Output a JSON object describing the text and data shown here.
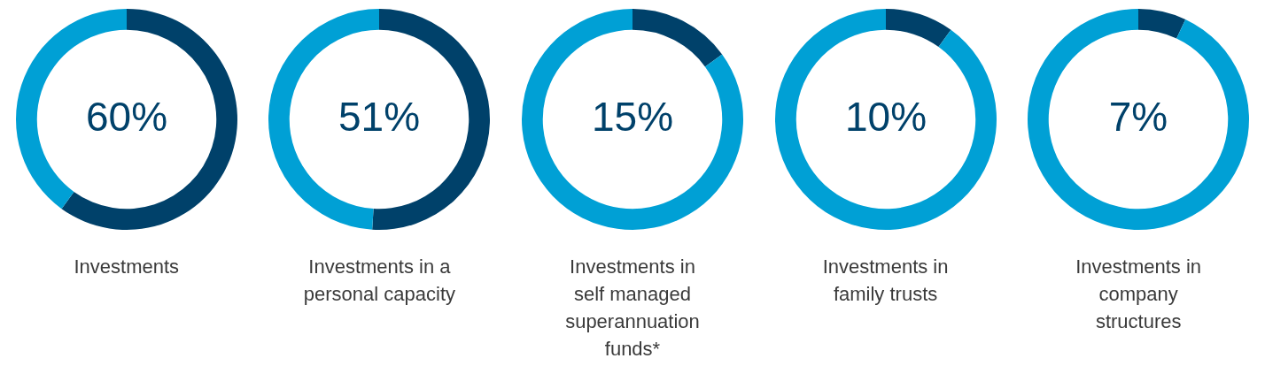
{
  "chart_data": [
    {
      "type": "donut",
      "title": "Investments",
      "categories": [
        null,
        null
      ],
      "values": [
        60,
        40
      ],
      "colors": [
        "#00416a",
        "#00a0d5"
      ],
      "value_labels": [
        "60%",
        null
      ]
    },
    {
      "type": "donut",
      "title": "Investments in a personal capacity",
      "categories": [
        null,
        null
      ],
      "values": [
        51,
        49
      ],
      "colors": [
        "#00416a",
        "#00a0d5"
      ],
      "value_labels": [
        "51%",
        null
      ]
    },
    {
      "type": "donut",
      "title": "Investments in self managed superannuation funds*",
      "categories": [
        null,
        null
      ],
      "values": [
        15,
        85
      ],
      "colors": [
        "#00416a",
        "#00a0d5"
      ],
      "value_labels": [
        "15%",
        null
      ]
    },
    {
      "type": "donut",
      "title": "Investments in family trusts",
      "categories": [
        null,
        null
      ],
      "values": [
        10,
        90
      ],
      "colors": [
        "#00416a",
        "#00a0d5"
      ],
      "value_labels": [
        "10%",
        null
      ]
    },
    {
      "type": "donut",
      "title": "Investments in company structures",
      "categories": [
        null,
        null
      ],
      "values": [
        7,
        93
      ],
      "colors": [
        "#00416a",
        "#00a0d5"
      ],
      "value_labels": [
        "7%",
        null
      ]
    }
  ]
}
